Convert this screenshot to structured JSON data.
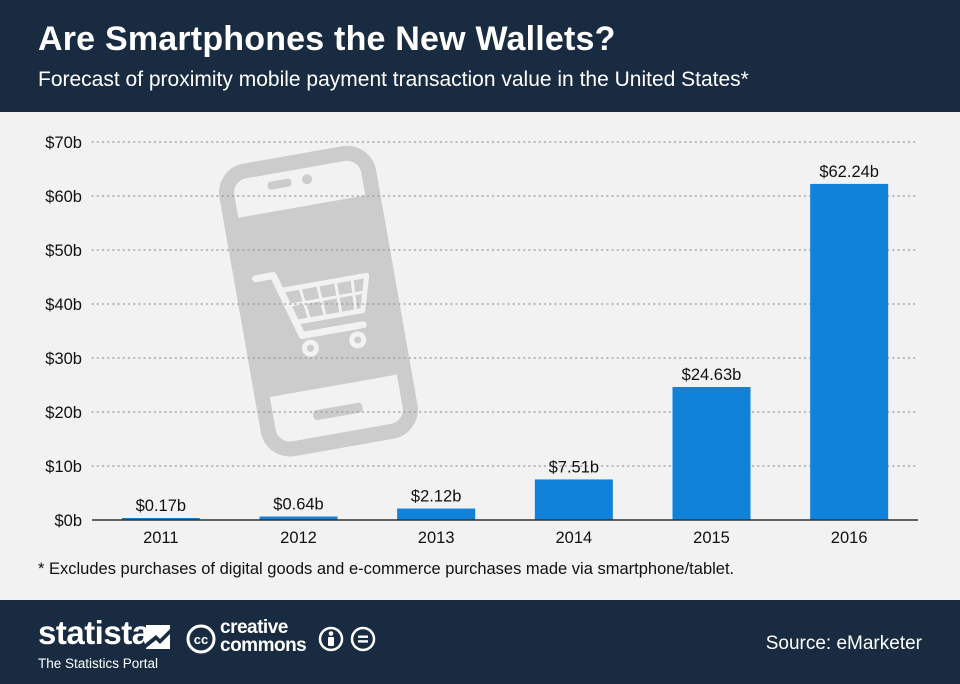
{
  "header": {
    "title": "Are Smartphones the New Wallets?",
    "subtitle": "Forecast of proximity mobile payment transaction value in the United States*"
  },
  "chart_data": {
    "type": "bar",
    "categories": [
      "2011",
      "2012",
      "2013",
      "2014",
      "2015",
      "2016"
    ],
    "values": [
      0.17,
      0.64,
      2.12,
      7.51,
      24.63,
      62.24
    ],
    "value_labels": [
      "$0.17b",
      "$0.64b",
      "$2.12b",
      "$7.51b",
      "$24.63b",
      "$62.24b"
    ],
    "yticks": [
      0,
      10,
      20,
      30,
      40,
      50,
      60,
      70
    ],
    "ytick_labels": [
      "$0b",
      "$10b",
      "$20b",
      "$30b",
      "$40b",
      "$50b",
      "$60b",
      "$70b"
    ],
    "ylim": [
      0,
      70
    ],
    "grid": "horizontal dotted",
    "bar_color": "#1082d9",
    "background_illustration": "smartphone-with-shopping-cart"
  },
  "footnote": "* Excludes purchases of digital goods and e-commerce purchases made via smartphone/tablet.",
  "footer": {
    "brand": "statista",
    "brand_tagline": "The Statistics Portal",
    "license_badge": "cc",
    "license_text_line1": "creative",
    "license_text_line2": "commons",
    "license_icons": [
      "attribution-icon",
      "no-derivatives-icon"
    ],
    "source": "Source: eMarketer"
  },
  "colors": {
    "header_bg": "#182b40",
    "footer_bg": "#182b40",
    "chart_bg": "#f2f2f2",
    "bar": "#1082d9",
    "illustration": "#cccccc"
  }
}
